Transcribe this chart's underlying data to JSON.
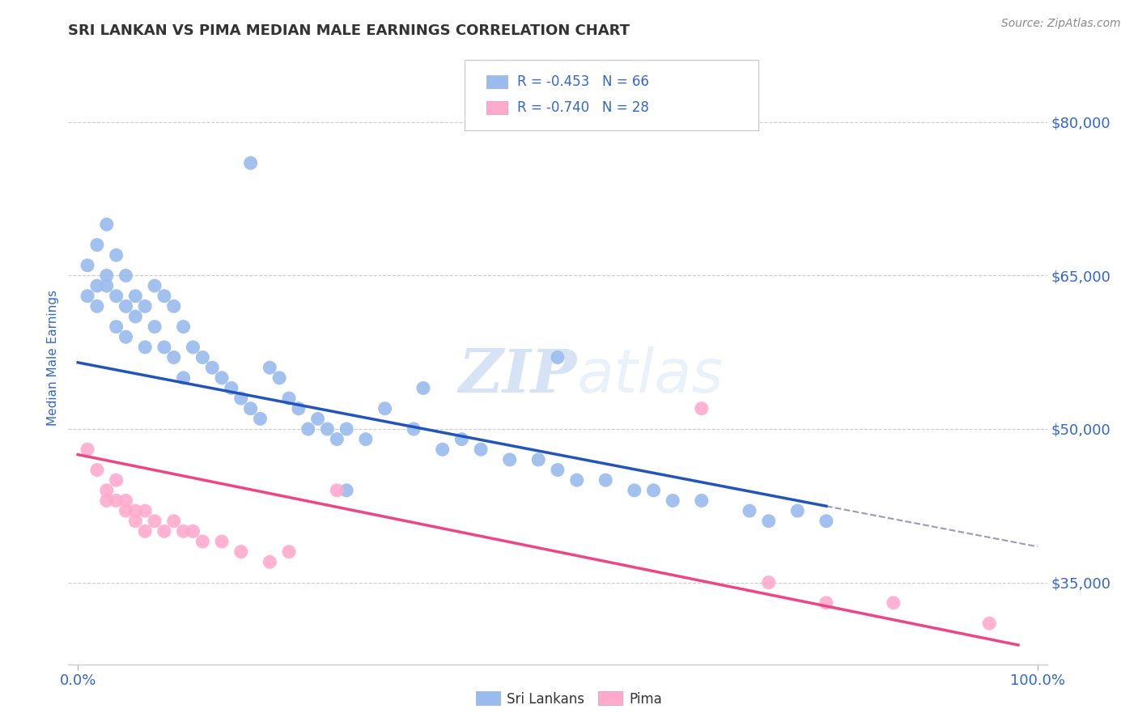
{
  "title": "SRI LANKAN VS PIMA MEDIAN MALE EARNINGS CORRELATION CHART",
  "source": "Source: ZipAtlas.com",
  "ylabel": "Median Male Earnings",
  "ytick_labels": [
    "$80,000",
    "$65,000",
    "$50,000",
    "$35,000"
  ],
  "ytick_values": [
    80000,
    65000,
    50000,
    35000
  ],
  "xlim": [
    -0.01,
    1.01
  ],
  "ylim": [
    27000,
    87000
  ],
  "xtick_labels": [
    "0.0%",
    "100.0%"
  ],
  "xtick_values": [
    0.0,
    1.0
  ],
  "sri_lankan_x": [
    0.01,
    0.01,
    0.02,
    0.02,
    0.02,
    0.03,
    0.03,
    0.03,
    0.04,
    0.04,
    0.04,
    0.05,
    0.05,
    0.05,
    0.06,
    0.06,
    0.07,
    0.07,
    0.08,
    0.08,
    0.09,
    0.09,
    0.1,
    0.1,
    0.11,
    0.11,
    0.12,
    0.13,
    0.14,
    0.15,
    0.16,
    0.17,
    0.18,
    0.19,
    0.2,
    0.21,
    0.22,
    0.23,
    0.24,
    0.25,
    0.26,
    0.27,
    0.28,
    0.3,
    0.32,
    0.35,
    0.38,
    0.4,
    0.42,
    0.45,
    0.48,
    0.5,
    0.52,
    0.55,
    0.58,
    0.6,
    0.62,
    0.65,
    0.7,
    0.72,
    0.75,
    0.78,
    0.5,
    0.36,
    0.18,
    0.28
  ],
  "sri_lankan_y": [
    66000,
    63000,
    68000,
    64000,
    62000,
    70000,
    65000,
    64000,
    67000,
    63000,
    60000,
    65000,
    62000,
    59000,
    63000,
    61000,
    62000,
    58000,
    64000,
    60000,
    63000,
    58000,
    62000,
    57000,
    60000,
    55000,
    58000,
    57000,
    56000,
    55000,
    54000,
    53000,
    52000,
    51000,
    56000,
    55000,
    53000,
    52000,
    50000,
    51000,
    50000,
    49000,
    50000,
    49000,
    52000,
    50000,
    48000,
    49000,
    48000,
    47000,
    47000,
    46000,
    45000,
    45000,
    44000,
    44000,
    43000,
    43000,
    42000,
    41000,
    42000,
    41000,
    57000,
    54000,
    76000,
    44000
  ],
  "pima_x": [
    0.01,
    0.02,
    0.03,
    0.03,
    0.04,
    0.04,
    0.05,
    0.05,
    0.06,
    0.06,
    0.07,
    0.07,
    0.08,
    0.09,
    0.1,
    0.11,
    0.12,
    0.13,
    0.15,
    0.17,
    0.2,
    0.22,
    0.27,
    0.65,
    0.72,
    0.78,
    0.85,
    0.95
  ],
  "pima_y": [
    48000,
    46000,
    44000,
    43000,
    45000,
    43000,
    43000,
    42000,
    42000,
    41000,
    42000,
    40000,
    41000,
    40000,
    41000,
    40000,
    40000,
    39000,
    39000,
    38000,
    37000,
    38000,
    44000,
    52000,
    35000,
    33000,
    33000,
    31000
  ],
  "blue_line_color": "#2255bb",
  "pink_line_color": "#ee4488",
  "blue_dot_color": "#99bbee",
  "pink_dot_color": "#ffaacc",
  "dashed_line_color": "#9999bb",
  "legend_blue_r": "R = -0.453",
  "legend_blue_n": "N = 66",
  "legend_pink_r": "R = -0.740",
  "legend_pink_n": "N = 28",
  "legend_label_blue": "Sri Lankans",
  "legend_label_pink": "Pima",
  "watermark_zip": "ZIP",
  "watermark_atlas": "atlas",
  "title_color": "#333333",
  "axis_label_color": "#3366cc",
  "source_color": "#888888",
  "grid_color": "#cccccc",
  "blue_line_intercept": 56500,
  "blue_line_slope": -18000,
  "pink_line_intercept": 47500,
  "pink_line_slope": -19000
}
